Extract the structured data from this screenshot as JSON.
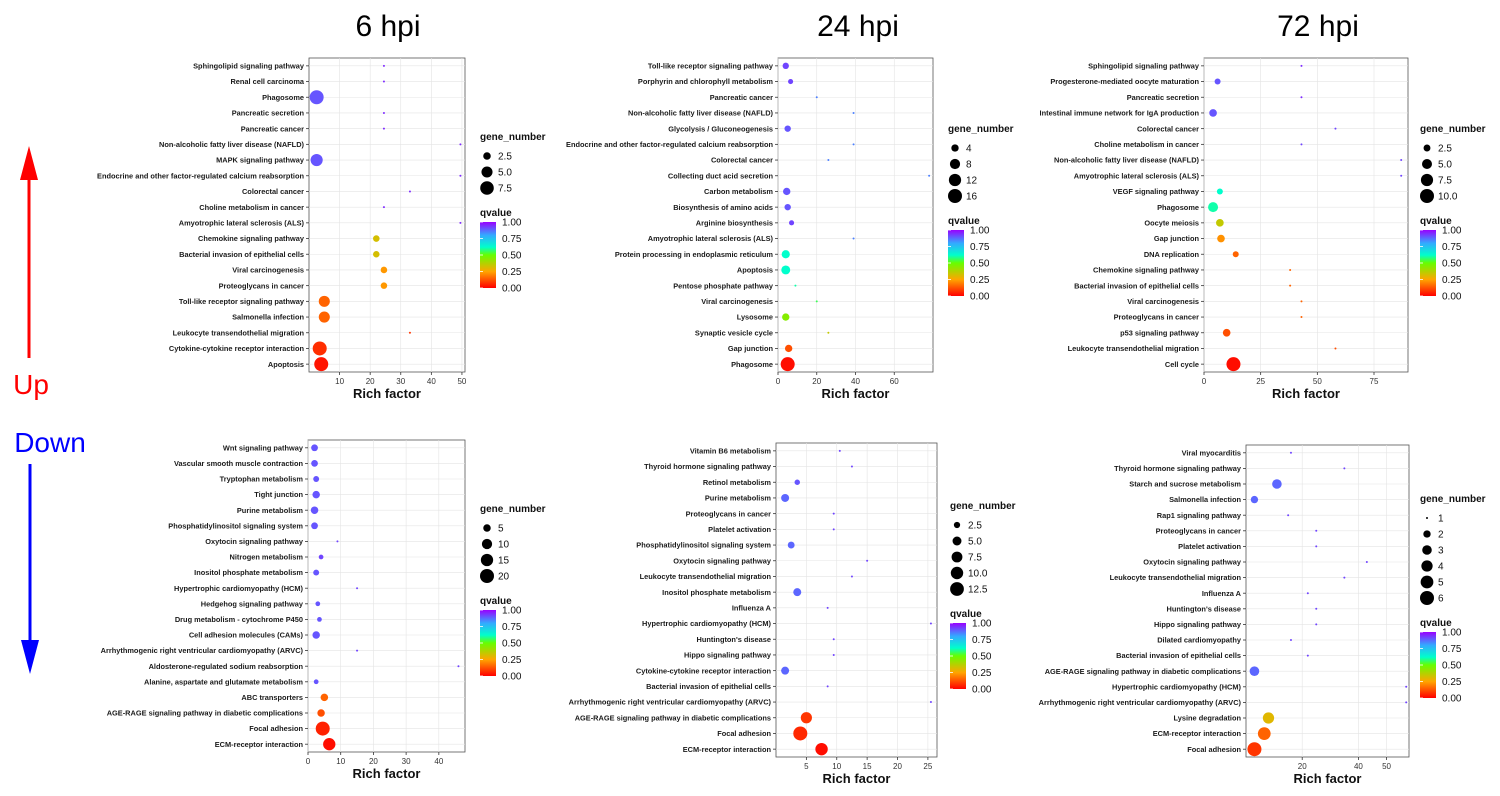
{
  "column_titles": [
    "6 hpi",
    "24 hpi",
    "72 hpi"
  ],
  "side_labels": {
    "up": "Up",
    "down": "Down"
  },
  "colors": {
    "up_arrow": "#ff0000",
    "down_arrow": "#0000ff"
  },
  "chart_data": [
    {
      "id": "up-6hpi",
      "type": "scatter",
      "direction": "Up",
      "title": "6 hpi",
      "xlabel": "Rich factor",
      "xlim": [
        0,
        51
      ],
      "xticks": [
        10,
        20,
        30,
        40,
        50
      ],
      "size_legend_title": "gene_number",
      "size_legend": [
        "2.5",
        "5.0",
        "7.5"
      ],
      "size_range": [
        1,
        8
      ],
      "color_legend_title": "qvalue",
      "color_ticks": [
        "1.00",
        "0.75",
        "0.50",
        "0.25",
        "0.00"
      ],
      "terms": [
        "Sphingolipid signaling pathway",
        "Renal cell carcinoma",
        "Phagosome",
        "Pancreatic secretion",
        "Pancreatic cancer",
        "Non-alcoholic fatty liver disease (NAFLD)",
        "MAPK signaling pathway",
        "Endocrine and other factor-regulated calcium reabsorption",
        "Colorectal cancer",
        "Choline metabolism in cancer",
        "Amyotrophic lateral sclerosis (ALS)",
        "Chemokine signaling pathway",
        "Bacterial invasion of epithelial cells",
        "Viral carcinogenesis",
        "Proteoglycans in cancer",
        "Toll-like receptor signaling pathway",
        "Salmonella infection",
        "Leukocyte transendothelial migration",
        "Cytokine-cytokine receptor interaction",
        "Apoptosis"
      ],
      "x": [
        24.5,
        24.5,
        2.5,
        24.5,
        24.5,
        49.5,
        2.5,
        49.5,
        33,
        24.5,
        49.5,
        22,
        22,
        24.5,
        24.5,
        5,
        5,
        33,
        3.5,
        4
      ],
      "q": [
        0.95,
        0.95,
        0.9,
        0.95,
        0.95,
        0.95,
        0.9,
        0.95,
        0.95,
        0.95,
        0.95,
        0.32,
        0.32,
        0.23,
        0.23,
        0.15,
        0.15,
        0.08,
        0.07,
        0.03
      ],
      "gene_number": [
        1,
        1,
        8,
        1,
        1,
        1,
        6,
        1,
        1,
        1,
        1,
        2,
        2,
        2,
        2,
        5,
        5,
        1,
        8,
        8
      ]
    },
    {
      "id": "up-24hpi",
      "type": "scatter",
      "direction": "Up",
      "title": "24 hpi",
      "xlabel": "Rich factor",
      "xlim": [
        0,
        80
      ],
      "xticks": [
        0,
        20,
        40,
        60
      ],
      "size_legend_title": "gene_number",
      "size_legend": [
        "4",
        "8",
        "12",
        "16"
      ],
      "size_range": [
        1,
        16
      ],
      "color_legend_title": "qvalue",
      "color_ticks": [
        "1.00",
        "0.75",
        "0.50",
        "0.25",
        "0.00"
      ],
      "terms": [
        "Toll-like receptor signaling pathway",
        "Porphyrin and chlorophyll metabolism",
        "Pancreatic cancer",
        "Non-alcoholic fatty liver disease (NAFLD)",
        "Glycolysis / Gluconeogenesis",
        "Endocrine and other factor-regulated calcium reabsorption",
        "Colorectal cancer",
        "Collecting duct acid secretion",
        "Carbon metabolism",
        "Biosynthesis of amino acids",
        "Arginine biosynthesis",
        "Amyotrophic lateral sclerosis (ALS)",
        "Protein processing in endoplasmic reticulum",
        "Apoptosis",
        "Pentose phosphate pathway",
        "Viral carcinogenesis",
        "Lysosome",
        "Synaptic vesicle cycle",
        "Gap junction",
        "Phagosome"
      ],
      "x": [
        4,
        6.5,
        20,
        39,
        5,
        39,
        26,
        78,
        4.5,
        5,
        7,
        39,
        4,
        4,
        9,
        20,
        4,
        26,
        5.5,
        5
      ],
      "q": [
        0.92,
        0.92,
        0.85,
        0.85,
        0.9,
        0.85,
        0.85,
        0.85,
        0.9,
        0.9,
        0.92,
        0.85,
        0.62,
        0.62,
        0.6,
        0.55,
        0.45,
        0.35,
        0.12,
        0.02
      ],
      "gene_number": [
        3,
        2,
        1,
        1,
        3,
        1,
        1,
        1,
        4,
        3,
        2,
        1,
        5,
        6,
        1,
        1,
        4,
        1,
        4,
        16
      ]
    },
    {
      "id": "up-72hpi",
      "type": "scatter",
      "direction": "Up",
      "title": "72 hpi",
      "xlabel": "Rich factor",
      "xlim": [
        0,
        90
      ],
      "xticks": [
        0,
        25,
        50,
        75
      ],
      "size_legend_title": "gene_number",
      "size_legend": [
        "2.5",
        "5.0",
        "7.5",
        "10.0"
      ],
      "size_range": [
        1,
        10
      ],
      "color_legend_title": "qvalue",
      "color_ticks": [
        "1.00",
        "0.75",
        "0.50",
        "0.25",
        "0.00"
      ],
      "terms": [
        "Sphingolipid signaling pathway",
        "Progesterone-mediated oocyte maturation",
        "Pancreatic secretion",
        "Intestinal immune network for IgA production",
        "Colorectal cancer",
        "Choline metabolism in cancer",
        "Non-alcoholic fatty liver disease (NAFLD)",
        "Amyotrophic lateral sclerosis (ALS)",
        "VEGF signaling pathway",
        "Phagosome",
        "Oocyte meiosis",
        "Gap junction",
        "DNA replication",
        "Chemokine signaling pathway",
        "Bacterial invasion of epithelial cells",
        "Viral carcinogenesis",
        "Proteoglycans in cancer",
        "p53 signaling pathway",
        "Leukocyte transendothelial migration",
        "Cell cycle"
      ],
      "x": [
        43,
        6,
        43,
        4,
        58,
        43,
        87,
        87,
        7,
        4,
        7,
        7.5,
        14,
        38,
        38,
        43,
        43,
        10,
        58,
        13
      ],
      "q": [
        0.95,
        0.9,
        0.95,
        0.9,
        0.92,
        0.92,
        0.92,
        0.92,
        0.62,
        0.6,
        0.35,
        0.22,
        0.15,
        0.15,
        0.15,
        0.15,
        0.15,
        0.12,
        0.12,
        0.02
      ],
      "gene_number": [
        1,
        2,
        1,
        3,
        1,
        1,
        1,
        1,
        2,
        5,
        3,
        3,
        2,
        1,
        1,
        1,
        1,
        3,
        1,
        10
      ]
    },
    {
      "id": "down-6hpi",
      "type": "scatter",
      "direction": "Down",
      "title": "6 hpi",
      "xlabel": "Rich factor",
      "xlim": [
        0,
        48
      ],
      "xticks": [
        0,
        10,
        20,
        30,
        40
      ],
      "size_legend_title": "gene_number",
      "size_legend": [
        "5",
        "10",
        "15",
        "20"
      ],
      "size_range": [
        1,
        20
      ],
      "color_legend_title": "qvalue",
      "color_ticks": [
        "1.00",
        "0.75",
        "0.50",
        "0.25",
        "0.00"
      ],
      "terms": [
        "Wnt signaling pathway",
        "Vascular smooth muscle contraction",
        "Tryptophan metabolism",
        "Tight junction",
        "Purine metabolism",
        "Phosphatidylinositol signaling system",
        "Oxytocin signaling pathway",
        "Nitrogen metabolism",
        "Inositol phosphate metabolism",
        "Hypertrophic cardiomyopathy (HCM)",
        "Hedgehog signaling pathway",
        "Drug metabolism - cytochrome P450",
        "Cell adhesion molecules (CAMs)",
        "Arrhythmogenic right ventricular cardiomyopathy (ARVC)",
        "Aldosterone-regulated sodium reabsorption",
        "Alanine, aspartate and glutamate metabolism",
        "ABC transporters",
        "AGE-RAGE signaling pathway in diabetic complications",
        "Focal adhesion",
        "ECM-receptor interaction"
      ],
      "x": [
        2,
        2,
        2.5,
        2.5,
        2,
        2,
        9,
        4,
        2.5,
        15,
        3,
        3.5,
        2.5,
        15,
        46,
        2.5,
        5,
        4,
        4.5,
        6.5
      ],
      "q": [
        0.9,
        0.9,
        0.9,
        0.9,
        0.9,
        0.9,
        0.92,
        0.92,
        0.9,
        0.92,
        0.9,
        0.9,
        0.9,
        0.92,
        0.92,
        0.9,
        0.15,
        0.12,
        0.05,
        0.02
      ],
      "gene_number": [
        4,
        4,
        3,
        5,
        5,
        4,
        1,
        2,
        3,
        1,
        2,
        2,
        5,
        1,
        1,
        2,
        5,
        5,
        20,
        15
      ]
    },
    {
      "id": "down-24hpi",
      "type": "scatter",
      "direction": "Down",
      "title": "24 hpi",
      "xlabel": "Rich factor",
      "xlim": [
        0,
        26.5
      ],
      "xticks": [
        5,
        10,
        15,
        20,
        25
      ],
      "size_legend_title": "gene_number",
      "size_legend": [
        "2.5",
        "5.0",
        "7.5",
        "10.0",
        "12.5"
      ],
      "size_range": [
        1,
        13
      ],
      "color_legend_title": "qvalue",
      "color_ticks": [
        "1.00",
        "0.75",
        "0.50",
        "0.25",
        "0.00"
      ],
      "terms": [
        "Vitamin B6 metabolism",
        "Thyroid hormone signaling pathway",
        "Retinol metabolism",
        "Purine metabolism",
        "Proteoglycans in cancer",
        "Platelet activation",
        "Phosphatidylinositol signaling system",
        "Oxytocin signaling pathway",
        "Leukocyte transendothelial migration",
        "Inositol phosphate metabolism",
        "Influenza A",
        "Hypertrophic cardiomyopathy (HCM)",
        "Huntington's disease",
        "Hippo signaling pathway",
        "Cytokine-cytokine receptor interaction",
        "Bacterial invasion of epithelial cells",
        "Arrhythmogenic right ventricular cardiomyopathy (ARVC)",
        "AGE-RAGE signaling pathway in diabetic complications",
        "Focal adhesion",
        "ECM-receptor interaction"
      ],
      "x": [
        10.5,
        12.5,
        3.5,
        1.5,
        9.5,
        9.5,
        2.5,
        15,
        12.5,
        3.5,
        8.5,
        25.5,
        9.5,
        9.5,
        1.5,
        8.5,
        25.5,
        5,
        4,
        7.5
      ],
      "q": [
        0.92,
        0.92,
        0.9,
        0.88,
        0.92,
        0.92,
        0.88,
        0.92,
        0.92,
        0.88,
        0.92,
        0.92,
        0.92,
        0.92,
        0.88,
        0.92,
        0.92,
        0.08,
        0.06,
        0.02
      ],
      "gene_number": [
        1,
        1,
        2,
        4,
        1,
        1,
        3,
        1,
        1,
        4,
        1,
        1,
        1,
        1,
        4,
        1,
        1,
        8,
        13,
        10
      ]
    },
    {
      "id": "down-72hpi",
      "type": "scatter",
      "direction": "Down",
      "title": "72 hpi",
      "xlabel": "Rich factor",
      "xlim": [
        0,
        58
      ],
      "xticks": [
        20,
        40,
        50
      ],
      "size_legend_title": "gene_number",
      "size_legend": [
        "1",
        "2",
        "3",
        "4",
        "5",
        "6"
      ],
      "size_range": [
        1,
        6
      ],
      "color_legend_title": "qvalue",
      "color_ticks": [
        "1.00",
        "0.75",
        "0.50",
        "0.25",
        "0.00"
      ],
      "terms": [
        "Viral myocarditis",
        "Thyroid hormone signaling pathway",
        "Starch and sucrose metabolism",
        "Salmonella infection",
        "Rap1 signaling pathway",
        "Proteoglycans in cancer",
        "Platelet activation",
        "Oxytocin signaling pathway",
        "Leukocyte transendothelial migration",
        "Influenza A",
        "Huntington's disease",
        "Hippo signaling pathway",
        "Dilated cardiomyopathy",
        "Bacterial invasion of epithelial cells",
        "AGE-RAGE signaling pathway in diabetic complications",
        "Hypertrophic cardiomyopathy (HCM)",
        "Arrhythmogenic right ventricular cardiomyopathy (ARVC)",
        "Lysine degradation",
        "ECM-receptor interaction",
        "Focal adhesion"
      ],
      "x": [
        16,
        35,
        11,
        3,
        15,
        25,
        25,
        43,
        35,
        22,
        25,
        25,
        16,
        22,
        3,
        57,
        57,
        8,
        6.5,
        3
      ],
      "q": [
        0.92,
        0.92,
        0.88,
        0.88,
        0.92,
        0.92,
        0.92,
        0.92,
        0.92,
        0.92,
        0.92,
        0.92,
        0.92,
        0.92,
        0.88,
        0.92,
        0.92,
        0.3,
        0.15,
        0.08
      ],
      "gene_number": [
        1,
        1,
        3,
        2,
        1,
        1,
        1,
        1,
        1,
        1,
        1,
        1,
        1,
        1,
        3,
        1,
        1,
        4,
        5,
        6
      ]
    }
  ]
}
